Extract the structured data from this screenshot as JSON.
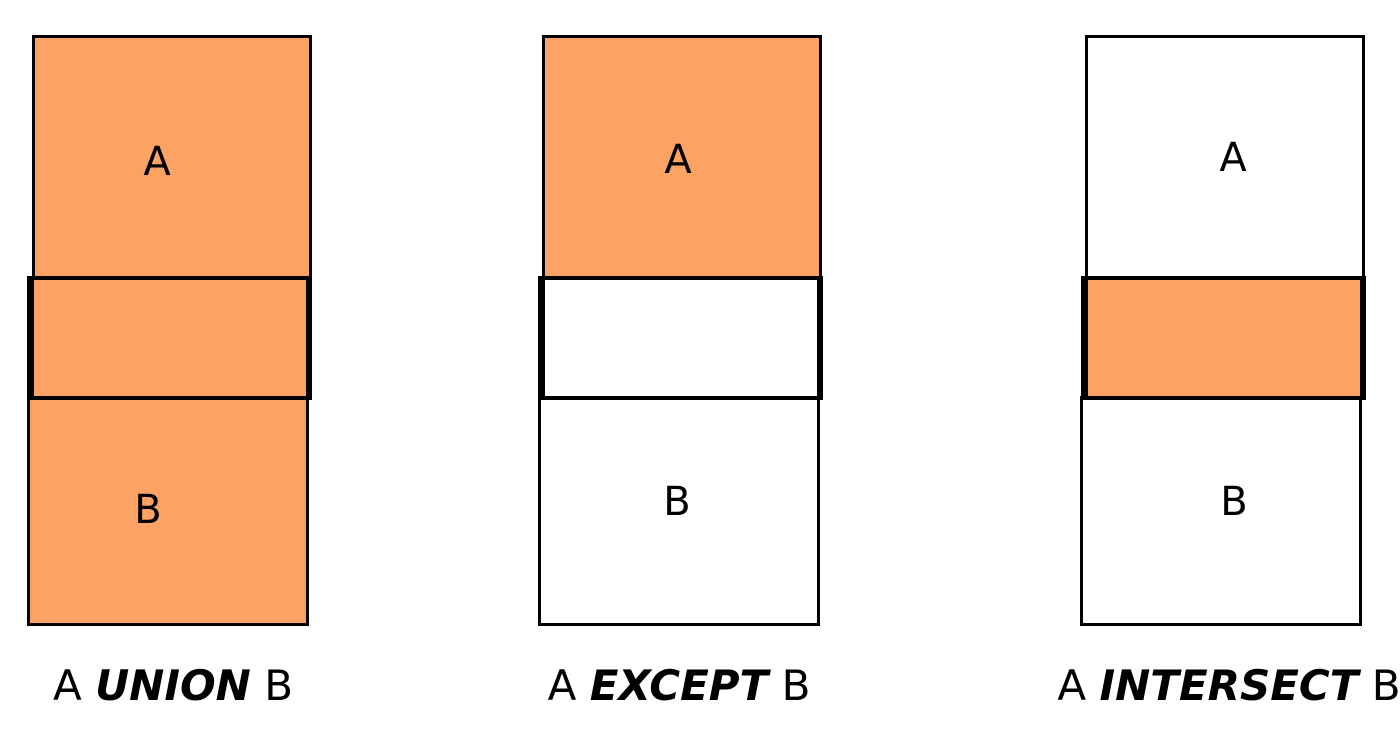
{
  "colors": {
    "filled": "#FCA264",
    "empty": "#FFFFFF",
    "outline": "#000000"
  },
  "panels": [
    {
      "label_a": "A",
      "label_b": "B",
      "caption_left": "A",
      "operator": "UNION",
      "caption_right": "B",
      "fill": {
        "a_only": true,
        "overlap": true,
        "b_only": true
      }
    },
    {
      "label_a": "A",
      "label_b": "B",
      "caption_left": "A",
      "operator": "EXCEPT",
      "caption_right": "B",
      "fill": {
        "a_only": true,
        "overlap": false,
        "b_only": false
      }
    },
    {
      "label_a": "A",
      "label_b": "B",
      "caption_left": "A",
      "operator": "INTERSECT",
      "caption_right": "B",
      "fill": {
        "a_only": false,
        "overlap": true,
        "b_only": false
      }
    }
  ]
}
